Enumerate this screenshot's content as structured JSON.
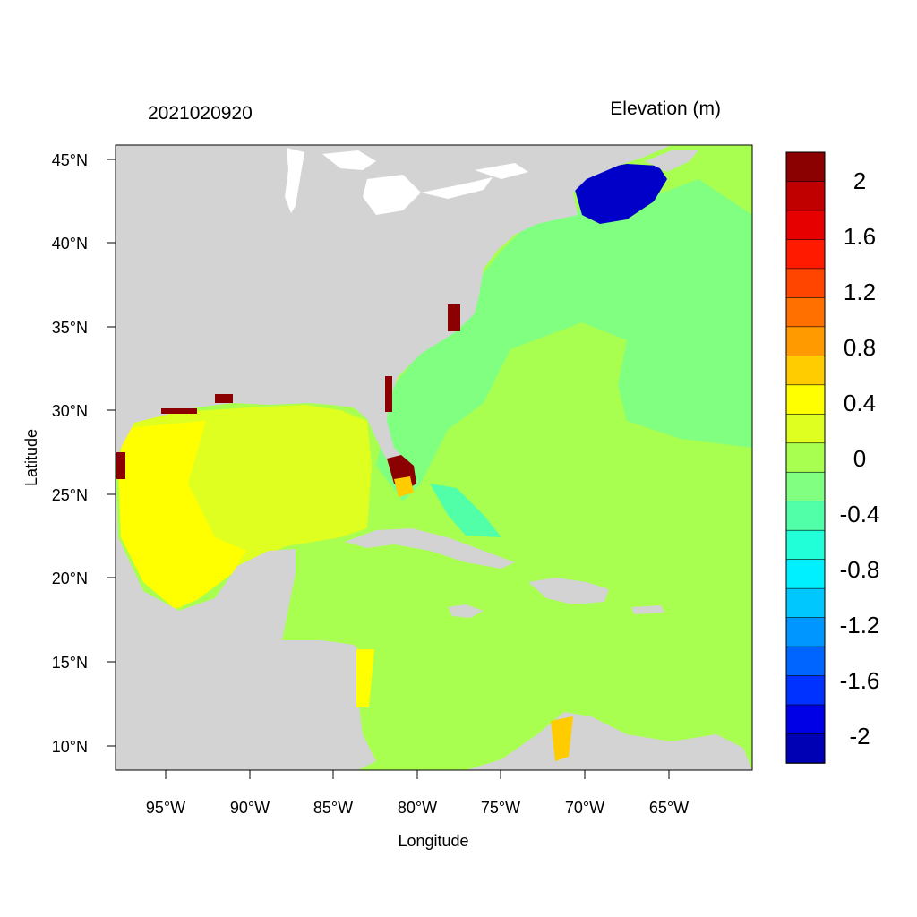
{
  "plot": {
    "title_left": "2021020920",
    "title_right": "Elevation (m)",
    "xlabel": "Longitude",
    "ylabel": "Latitude"
  },
  "axes": {
    "x_ticks": [
      "95°W",
      "90°W",
      "85°W",
      "80°W",
      "75°W",
      "70°W",
      "65°W"
    ],
    "y_ticks": [
      "45°N",
      "40°N",
      "35°N",
      "30°N",
      "25°N",
      "20°N",
      "15°N",
      "10°N"
    ]
  },
  "colorbar": {
    "labels": [
      "2",
      "1.6",
      "1.2",
      "0.8",
      "0.4",
      "0",
      "-0.4",
      "-0.8",
      "-1.2",
      "-1.6",
      "-2"
    ],
    "colors": [
      "#8b0000",
      "#c00000",
      "#e60000",
      "#ff1a00",
      "#ff4500",
      "#ff7000",
      "#ff9a00",
      "#ffcc00",
      "#ffff00",
      "#dfff20",
      "#a8ff50",
      "#80ff80",
      "#50ffa8",
      "#20ffd8",
      "#00f0ff",
      "#00c8ff",
      "#0096ff",
      "#0064ff",
      "#0032ff",
      "#0000e6",
      "#0000b4"
    ]
  },
  "map_colors": {
    "land": "#d3d3d3",
    "ocean_default": "#a8ff50",
    "gulf": "#dfff20",
    "gulf_west": "#ffff00",
    "atlantic_band": "#80ff80",
    "gulf_of_maine": "#0000c8",
    "florida_surge": "#8b0000"
  }
}
